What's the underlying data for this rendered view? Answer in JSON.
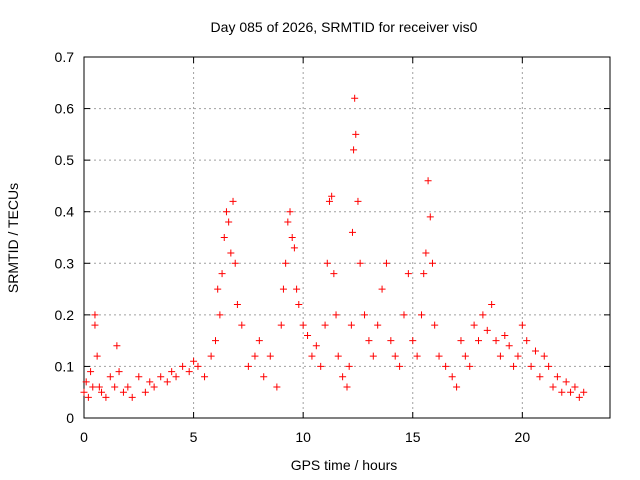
{
  "chart_data": {
    "type": "scatter",
    "title": "Day 085 of 2026, SRMTID for receiver vis0",
    "xlabel": "GPS time / hours",
    "ylabel": "SRMTID / TECUs",
    "xlim": [
      0,
      24
    ],
    "ylim": [
      0,
      0.7
    ],
    "xticks": [
      0,
      5,
      10,
      15,
      20
    ],
    "yticks": [
      0,
      0.1,
      0.2,
      0.3,
      0.4,
      0.5,
      0.6,
      0.7
    ],
    "xtick_labels": [
      "0",
      "5",
      "10",
      "15",
      "20"
    ],
    "ytick_labels": [
      "0",
      "0.1",
      "0.2",
      "0.3",
      "0.4",
      "0.5",
      "0.6",
      "0.7"
    ],
    "grid": true,
    "marker": "+",
    "series": [
      {
        "name": "SRMTID vis0",
        "color": "#ff0000",
        "x": [
          0.0,
          0.1,
          0.2,
          0.3,
          0.4,
          0.5,
          0.5,
          0.6,
          0.7,
          0.8,
          1.0,
          1.2,
          1.4,
          1.5,
          1.6,
          1.8,
          2.0,
          2.2,
          2.5,
          2.8,
          3.0,
          3.2,
          3.5,
          3.8,
          4.0,
          4.2,
          4.5,
          4.8,
          5.0,
          5.2,
          5.5,
          5.8,
          6.0,
          6.1,
          6.2,
          6.3,
          6.4,
          6.5,
          6.6,
          6.7,
          6.8,
          6.9,
          7.0,
          7.2,
          7.5,
          7.8,
          8.0,
          8.2,
          8.5,
          8.8,
          9.0,
          9.1,
          9.2,
          9.3,
          9.4,
          9.5,
          9.6,
          9.7,
          9.8,
          10.0,
          10.2,
          10.4,
          10.6,
          10.8,
          11.0,
          11.1,
          11.2,
          11.3,
          11.4,
          11.5,
          11.6,
          11.8,
          12.0,
          12.1,
          12.2,
          12.25,
          12.3,
          12.35,
          12.4,
          12.5,
          12.6,
          12.8,
          13.0,
          13.2,
          13.4,
          13.6,
          13.8,
          14.0,
          14.2,
          14.4,
          14.6,
          14.8,
          15.0,
          15.2,
          15.4,
          15.5,
          15.6,
          15.7,
          15.8,
          15.9,
          16.0,
          16.2,
          16.5,
          16.8,
          17.0,
          17.2,
          17.4,
          17.6,
          17.8,
          18.0,
          18.2,
          18.4,
          18.6,
          18.8,
          19.0,
          19.2,
          19.4,
          19.6,
          19.8,
          20.0,
          20.2,
          20.4,
          20.6,
          20.8,
          21.0,
          21.2,
          21.4,
          21.6,
          21.8,
          22.0,
          22.2,
          22.4,
          22.6,
          22.8
        ],
        "y": [
          0.05,
          0.07,
          0.04,
          0.09,
          0.06,
          0.18,
          0.2,
          0.12,
          0.06,
          0.05,
          0.04,
          0.08,
          0.06,
          0.14,
          0.09,
          0.05,
          0.06,
          0.04,
          0.08,
          0.05,
          0.07,
          0.06,
          0.08,
          0.07,
          0.09,
          0.08,
          0.1,
          0.09,
          0.11,
          0.1,
          0.08,
          0.12,
          0.15,
          0.25,
          0.2,
          0.28,
          0.35,
          0.4,
          0.38,
          0.32,
          0.42,
          0.3,
          0.22,
          0.18,
          0.1,
          0.12,
          0.15,
          0.08,
          0.12,
          0.06,
          0.18,
          0.25,
          0.3,
          0.38,
          0.4,
          0.35,
          0.33,
          0.25,
          0.22,
          0.18,
          0.16,
          0.12,
          0.14,
          0.1,
          0.18,
          0.3,
          0.42,
          0.43,
          0.28,
          0.2,
          0.12,
          0.08,
          0.06,
          0.1,
          0.18,
          0.36,
          0.52,
          0.62,
          0.55,
          0.42,
          0.3,
          0.2,
          0.15,
          0.12,
          0.18,
          0.25,
          0.3,
          0.15,
          0.12,
          0.1,
          0.2,
          0.28,
          0.15,
          0.12,
          0.2,
          0.28,
          0.32,
          0.46,
          0.39,
          0.3,
          0.18,
          0.12,
          0.1,
          0.08,
          0.06,
          0.15,
          0.12,
          0.1,
          0.18,
          0.15,
          0.2,
          0.17,
          0.22,
          0.15,
          0.12,
          0.16,
          0.14,
          0.1,
          0.12,
          0.18,
          0.15,
          0.1,
          0.13,
          0.08,
          0.12,
          0.1,
          0.06,
          0.08,
          0.05,
          0.07,
          0.05,
          0.06,
          0.04,
          0.05
        ]
      }
    ]
  }
}
